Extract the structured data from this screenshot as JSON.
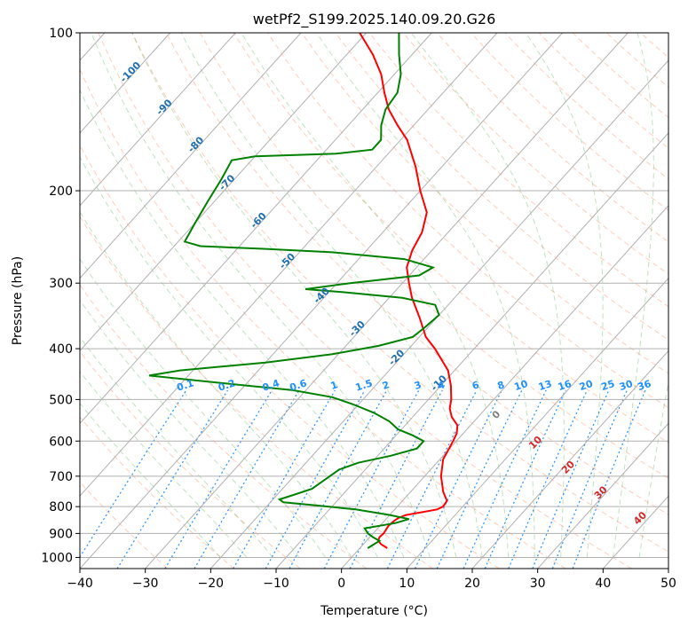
{
  "chart_data": {
    "type": "line",
    "title": "wetPf2_S199.2025.140.09.20.G26",
    "xlabel": "Temperature (°C)",
    "ylabel": "Pressure (hPa)",
    "xlim": [
      -40,
      50
    ],
    "ylim": [
      1050,
      100
    ],
    "y_scale": "log",
    "skew": true,
    "grid": true,
    "x_ticks": [
      -40,
      -30,
      -20,
      -10,
      0,
      10,
      20,
      30,
      40,
      50
    ],
    "y_ticks": [
      100,
      200,
      300,
      400,
      500,
      600,
      700,
      800,
      900,
      1000
    ],
    "series": [
      {
        "color": "#ff0000",
        "points": [
          {
            "p": 960,
            "t": 4.2
          },
          {
            "p": 945,
            "t": 2.8
          },
          {
            "p": 930,
            "t": 1.8
          },
          {
            "p": 915,
            "t": 1.5
          },
          {
            "p": 900,
            "t": 1.6
          },
          {
            "p": 870,
            "t": 1.3
          },
          {
            "p": 850,
            "t": 1.5
          },
          {
            "p": 840,
            "t": 1.8
          },
          {
            "p": 830,
            "t": 2.5
          },
          {
            "p": 820,
            "t": 4.5
          },
          {
            "p": 810,
            "t": 6.5
          },
          {
            "p": 800,
            "t": 7.0
          },
          {
            "p": 780,
            "t": 6.8
          },
          {
            "p": 750,
            "t": 5.0
          },
          {
            "p": 700,
            "t": 2.5
          },
          {
            "p": 650,
            "t": 0.5
          },
          {
            "p": 600,
            "t": -0.5
          },
          {
            "p": 580,
            "t": -1.0
          },
          {
            "p": 560,
            "t": -2.0
          },
          {
            "p": 540,
            "t": -4.0
          },
          {
            "p": 520,
            "t": -5.5
          },
          {
            "p": 500,
            "t": -6.5
          },
          {
            "p": 470,
            "t": -8.5
          },
          {
            "p": 440,
            "t": -11.0
          },
          {
            "p": 400,
            "t": -16.0
          },
          {
            "p": 380,
            "t": -19.0
          },
          {
            "p": 350,
            "t": -22.5
          },
          {
            "p": 320,
            "t": -26.5
          },
          {
            "p": 300,
            "t": -29.0
          },
          {
            "p": 280,
            "t": -31.5
          },
          {
            "p": 260,
            "t": -33.0
          },
          {
            "p": 240,
            "t": -34.0
          },
          {
            "p": 220,
            "t": -36.0
          },
          {
            "p": 200,
            "t": -40.0
          },
          {
            "p": 180,
            "t": -44.0
          },
          {
            "p": 160,
            "t": -49.0
          },
          {
            "p": 150,
            "t": -52.5
          },
          {
            "p": 140,
            "t": -56.0
          },
          {
            "p": 130,
            "t": -59.0
          },
          {
            "p": 120,
            "t": -62.0
          },
          {
            "p": 110,
            "t": -66.0
          },
          {
            "p": 100,
            "t": -71.0
          }
        ]
      },
      {
        "color": "#008000",
        "points": [
          {
            "p": 960,
            "t": 1.2
          },
          {
            "p": 945,
            "t": 1.6
          },
          {
            "p": 930,
            "t": 2.0
          },
          {
            "p": 915,
            "t": 0.5
          },
          {
            "p": 900,
            "t": -0.8
          },
          {
            "p": 880,
            "t": -2.0
          },
          {
            "p": 860,
            "t": 2.0
          },
          {
            "p": 845,
            "t": 3.5
          },
          {
            "p": 830,
            "t": 0.0
          },
          {
            "p": 810,
            "t": -6.0
          },
          {
            "p": 795,
            "t": -13.0
          },
          {
            "p": 785,
            "t": -18.0
          },
          {
            "p": 775,
            "t": -19.0
          },
          {
            "p": 760,
            "t": -17.5
          },
          {
            "p": 740,
            "t": -15.5
          },
          {
            "p": 700,
            "t": -14.5
          },
          {
            "p": 680,
            "t": -14.0
          },
          {
            "p": 660,
            "t": -12.0
          },
          {
            "p": 640,
            "t": -8.0
          },
          {
            "p": 620,
            "t": -5.0
          },
          {
            "p": 600,
            "t": -5.0
          },
          {
            "p": 585,
            "t": -7.5
          },
          {
            "p": 570,
            "t": -10.5
          },
          {
            "p": 550,
            "t": -13.0
          },
          {
            "p": 530,
            "t": -16.5
          },
          {
            "p": 510,
            "t": -21.0
          },
          {
            "p": 495,
            "t": -25.0
          },
          {
            "p": 480,
            "t": -32.0
          },
          {
            "p": 470,
            "t": -40.0
          },
          {
            "p": 460,
            "t": -48.0
          },
          {
            "p": 450,
            "t": -56.0
          },
          {
            "p": 440,
            "t": -52.0
          },
          {
            "p": 425,
            "t": -40.0
          },
          {
            "p": 410,
            "t": -31.0
          },
          {
            "p": 395,
            "t": -25.0
          },
          {
            "p": 380,
            "t": -21.0
          },
          {
            "p": 365,
            "t": -20.5
          },
          {
            "p": 345,
            "t": -20.0
          },
          {
            "p": 330,
            "t": -22.0
          },
          {
            "p": 320,
            "t": -28.0
          },
          {
            "p": 312,
            "t": -38.0
          },
          {
            "p": 308,
            "t": -44.0
          },
          {
            "p": 300,
            "t": -38.0
          },
          {
            "p": 290,
            "t": -28.5
          },
          {
            "p": 280,
            "t": -27.5
          },
          {
            "p": 270,
            "t": -33.0
          },
          {
            "p": 262,
            "t": -45.0
          },
          {
            "p": 258,
            "t": -56.0
          },
          {
            "p": 255,
            "t": -66.0
          },
          {
            "p": 250,
            "t": -69.0
          },
          {
            "p": 230,
            "t": -70.0
          },
          {
            "p": 210,
            "t": -71.0
          },
          {
            "p": 190,
            "t": -72.0
          },
          {
            "p": 175,
            "t": -73.0
          },
          {
            "p": 172,
            "t": -70.0
          },
          {
            "p": 170,
            "t": -58.0
          },
          {
            "p": 167,
            "t": -53.0
          },
          {
            "p": 160,
            "t": -53.0
          },
          {
            "p": 150,
            "t": -55.0
          },
          {
            "p": 140,
            "t": -56.5
          },
          {
            "p": 130,
            "t": -57.0
          },
          {
            "p": 120,
            "t": -59.0
          },
          {
            "p": 110,
            "t": -62.0
          },
          {
            "p": 100,
            "t": -65.0
          }
        ]
      }
    ],
    "isotherm_labels": [
      "-100",
      "-90",
      "-80",
      "-70",
      "-60",
      "-50",
      "-40",
      "-30",
      "-20",
      "-10"
    ],
    "mixing_ratio_labels": [
      "0.1",
      "0.2",
      "0.4",
      "0.6",
      "1",
      "1.5",
      "2",
      "3",
      "4",
      "6",
      "8",
      "10",
      "13",
      "16",
      "20",
      "25",
      "30",
      "36"
    ],
    "moist_adiabat_labels": [
      "0",
      "10",
      "20",
      "30",
      "40"
    ],
    "colors": {
      "temperature": "#ff0000",
      "dewpoint": "#008000",
      "isotherm_label": "#1f6fb0",
      "mixing_ratio": "#1e90ff",
      "moist_label_red": "#d62728",
      "moist_label_gray": "#7f7f7f",
      "dry_adiabat": "#ff7f50",
      "moist_adiabat": "#2ca02c"
    }
  }
}
